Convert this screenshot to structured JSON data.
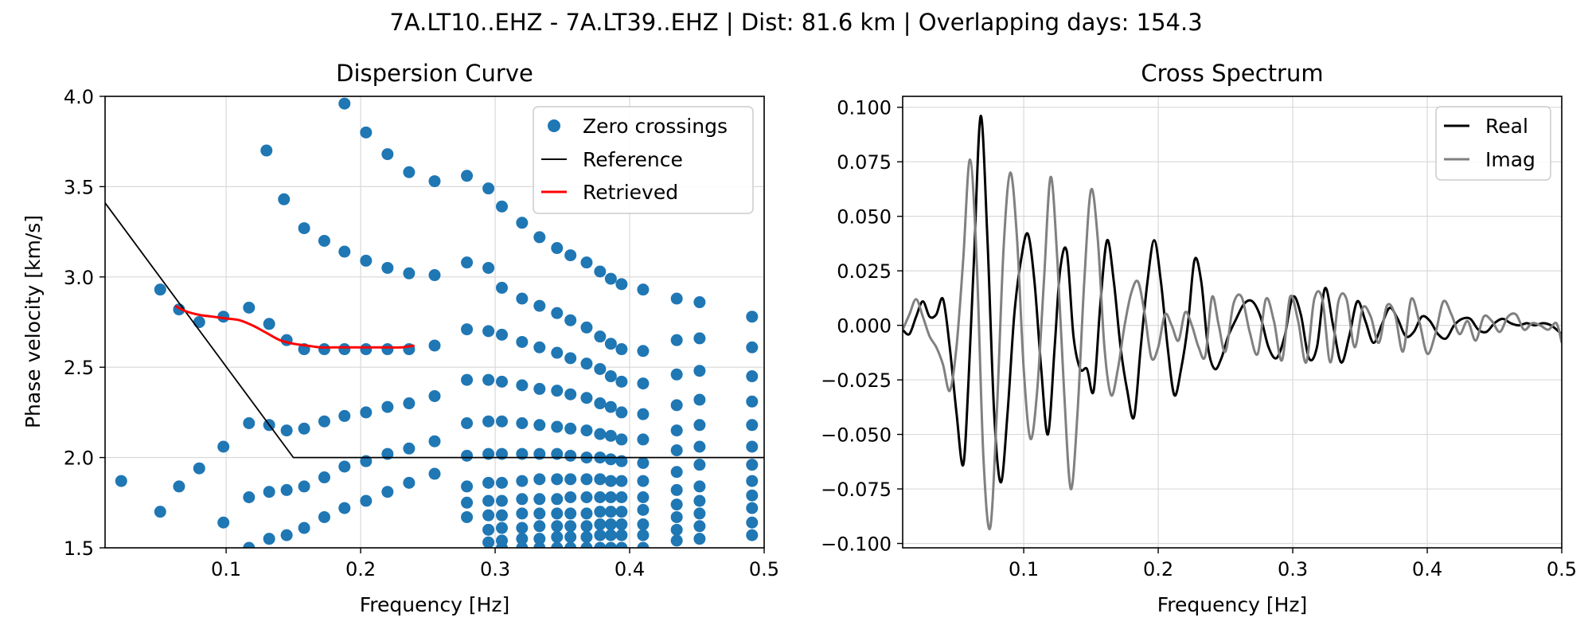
{
  "figure": {
    "suptitle": "7A.LT10..EHZ - 7A.LT39..EHZ | Dist: 81.6 km | Overlapping days: 154.3"
  },
  "colors": {
    "zero_crossings": "#1f77b4",
    "reference": "#000000",
    "retrieved": "#ff0000",
    "real": "#000000",
    "imag": "#808080",
    "grid": "#d9d9d9"
  },
  "chart_data": [
    {
      "type": "scatter",
      "title": "Dispersion Curve",
      "xlabel": "Frequency [Hz]",
      "ylabel": "Phase velocity [km/s]",
      "xlim": [
        0.01,
        0.5
      ],
      "ylim": [
        1.5,
        4.0
      ],
      "xticks": [
        0.1,
        0.2,
        0.3,
        0.4,
        0.5
      ],
      "xtick_labels": [
        "0.1",
        "0.2",
        "0.3",
        "0.4",
        "0.5"
      ],
      "yticks": [
        1.5,
        2.0,
        2.5,
        3.0,
        3.5,
        4.0
      ],
      "ytick_labels": [
        "1.5",
        "2.0",
        "2.5",
        "3.0",
        "3.5",
        "4.0"
      ],
      "grid": true,
      "legend_position": "top-right",
      "legend": [
        "Zero crossings",
        "Reference",
        "Retrieved"
      ],
      "series": [
        {
          "name": "Zero crossings",
          "type": "scatter",
          "x": [
            0.022,
            0.051,
            0.065,
            0.08,
            0.098,
            0.117,
            0.132,
            0.145,
            0.158,
            0.173,
            0.188,
            0.204,
            0.22,
            0.236,
            0.255,
            0.279,
            0.295,
            0.305,
            0.32,
            0.333,
            0.346,
            0.356,
            0.368,
            0.378,
            0.386,
            0.394,
            0.41,
            0.435,
            0.452,
            0.491,
            0.051,
            0.065,
            0.08,
            0.098,
            0.117,
            0.132,
            0.145,
            0.158,
            0.173,
            0.188,
            0.204,
            0.22,
            0.236,
            0.255,
            0.279,
            0.295,
            0.305,
            0.32,
            0.333,
            0.346,
            0.356,
            0.368,
            0.378,
            0.386,
            0.394,
            0.41,
            0.435,
            0.452,
            0.491,
            0.098,
            0.117,
            0.132,
            0.145,
            0.158,
            0.173,
            0.188,
            0.204,
            0.22,
            0.236,
            0.255,
            0.279,
            0.295,
            0.305,
            0.32,
            0.333,
            0.346,
            0.356,
            0.368,
            0.378,
            0.386,
            0.394,
            0.41,
            0.435,
            0.452,
            0.491,
            0.117,
            0.132,
            0.145,
            0.158,
            0.173,
            0.188,
            0.204,
            0.22,
            0.236,
            0.255,
            0.279,
            0.295,
            0.305,
            0.32,
            0.333,
            0.346,
            0.356,
            0.368,
            0.378,
            0.386,
            0.394,
            0.41,
            0.435,
            0.452,
            0.491,
            0.279,
            0.295,
            0.305,
            0.32,
            0.333,
            0.346,
            0.356,
            0.368,
            0.378,
            0.386,
            0.394,
            0.41,
            0.435,
            0.452,
            0.491,
            0.279,
            0.295,
            0.305,
            0.32,
            0.333,
            0.346,
            0.356,
            0.368,
            0.378,
            0.386,
            0.394,
            0.41,
            0.435,
            0.452,
            0.491,
            0.279,
            0.295,
            0.305,
            0.32,
            0.333,
            0.346,
            0.356,
            0.368,
            0.378,
            0.386,
            0.394,
            0.41,
            0.435,
            0.452,
            0.491,
            0.295,
            0.305,
            0.32,
            0.333,
            0.346,
            0.356,
            0.368,
            0.378,
            0.386,
            0.394,
            0.41,
            0.435,
            0.452,
            0.491,
            0.295,
            0.305,
            0.32,
            0.333,
            0.346,
            0.356,
            0.368,
            0.378,
            0.386,
            0.394,
            0.41,
            0.435,
            0.452,
            0.491,
            0.305,
            0.32,
            0.333,
            0.346,
            0.356,
            0.368,
            0.378,
            0.386,
            0.394,
            0.41,
            0.435,
            0.452,
            0.491,
            0.13,
            0.143,
            0.158,
            0.173,
            0.188,
            0.204,
            0.22,
            0.236,
            0.255,
            0.279,
            0.295,
            0.305,
            0.32,
            0.333,
            0.346,
            0.356,
            0.368,
            0.378,
            0.386,
            0.394,
            0.41,
            0.435,
            0.452,
            0.491,
            0.188,
            0.204,
            0.22,
            0.236,
            0.255,
            0.279,
            0.295,
            0.305,
            0.32,
            0.333,
            0.346,
            0.356,
            0.368,
            0.378,
            0.386,
            0.394,
            0.41,
            0.435,
            0.452,
            0.491
          ],
          "y": [
            1.87,
            2.93,
            2.82,
            2.75,
            2.78,
            2.83,
            2.74,
            2.65,
            2.6,
            2.6,
            2.6,
            2.6,
            2.6,
            2.6,
            2.62,
            2.71,
            2.7,
            2.68,
            2.64,
            2.61,
            2.58,
            2.55,
            2.52,
            2.49,
            2.45,
            2.42,
            2.41,
            2.46,
            2.48,
            2.45,
            1.7,
            1.84,
            1.94,
            2.06,
            2.19,
            2.18,
            2.15,
            2.16,
            2.2,
            2.23,
            2.25,
            2.28,
            2.3,
            2.34,
            2.43,
            2.43,
            2.42,
            2.4,
            2.38,
            2.37,
            2.35,
            2.33,
            2.3,
            2.28,
            2.25,
            2.24,
            2.29,
            2.32,
            2.31,
            1.64,
            1.78,
            1.81,
            1.82,
            1.84,
            1.89,
            1.95,
            1.98,
            2.02,
            2.05,
            2.09,
            2.19,
            2.2,
            2.2,
            2.19,
            2.18,
            2.17,
            2.16,
            2.15,
            2.13,
            2.12,
            2.1,
            2.1,
            2.15,
            2.18,
            2.18,
            1.5,
            1.55,
            1.57,
            1.61,
            1.67,
            1.72,
            1.76,
            1.81,
            1.86,
            1.91,
            2.01,
            2.02,
            2.02,
            2.02,
            2.02,
            2.02,
            2.01,
            2.0,
            2.0,
            1.99,
            1.98,
            1.97,
            2.04,
            2.06,
            2.06,
            1.84,
            1.86,
            1.86,
            1.87,
            1.88,
            1.88,
            1.88,
            1.88,
            1.88,
            1.87,
            1.87,
            1.87,
            1.92,
            1.96,
            1.96,
            1.75,
            1.76,
            1.76,
            1.77,
            1.77,
            1.77,
            1.78,
            1.78,
            1.78,
            1.78,
            1.78,
            1.78,
            1.82,
            1.84,
            1.87,
            1.67,
            1.68,
            1.68,
            1.69,
            1.69,
            1.69,
            1.69,
            1.69,
            1.7,
            1.7,
            1.7,
            1.71,
            1.74,
            1.76,
            1.79,
            1.6,
            1.61,
            1.61,
            1.62,
            1.62,
            1.62,
            1.62,
            1.63,
            1.63,
            1.63,
            1.63,
            1.67,
            1.69,
            1.72,
            1.53,
            1.54,
            1.55,
            1.55,
            1.56,
            1.56,
            1.56,
            1.57,
            1.57,
            1.57,
            1.57,
            1.6,
            1.62,
            1.64,
            1.5,
            1.5,
            1.5,
            1.5,
            1.5,
            1.5,
            1.5,
            1.5,
            1.5,
            1.5,
            1.54,
            1.55,
            1.57,
            3.7,
            3.43,
            3.27,
            3.2,
            3.14,
            3.09,
            3.05,
            3.02,
            3.01,
            3.08,
            3.05,
            2.94,
            2.88,
            2.84,
            2.8,
            2.76,
            2.72,
            2.67,
            2.63,
            2.6,
            2.59,
            2.65,
            2.66,
            2.61,
            3.96,
            3.8,
            3.68,
            3.58,
            3.53,
            3.56,
            3.49,
            3.39,
            3.3,
            3.22,
            3.16,
            3.12,
            3.08,
            3.03,
            2.99,
            2.96,
            2.93,
            2.88,
            2.86,
            2.78
          ]
        },
        {
          "name": "Reference",
          "type": "line",
          "x": [
            0.01,
            0.15,
            0.5
          ],
          "y": [
            3.41,
            2.0,
            2.0
          ]
        },
        {
          "name": "Retrieved",
          "type": "line",
          "x": [
            0.062,
            0.07,
            0.08,
            0.09,
            0.1,
            0.11,
            0.12,
            0.13,
            0.14,
            0.15,
            0.16,
            0.17,
            0.18,
            0.19,
            0.2,
            0.21,
            0.22,
            0.23,
            0.24
          ],
          "y": [
            2.84,
            2.81,
            2.79,
            2.78,
            2.77,
            2.76,
            2.73,
            2.69,
            2.65,
            2.63,
            2.62,
            2.61,
            2.61,
            2.61,
            2.61,
            2.61,
            2.61,
            2.61,
            2.62
          ]
        }
      ]
    },
    {
      "type": "line",
      "title": "Cross Spectrum",
      "xlabel": "Frequency [Hz]",
      "ylabel": "",
      "xlim": [
        0.01,
        0.5
      ],
      "ylim": [
        -0.102,
        0.105
      ],
      "xticks": [
        0.1,
        0.2,
        0.3,
        0.4,
        0.5
      ],
      "xtick_labels": [
        "0.1",
        "0.2",
        "0.3",
        "0.4",
        "0.5"
      ],
      "yticks": [
        -0.1,
        -0.075,
        -0.05,
        -0.025,
        0.0,
        0.025,
        0.05,
        0.075,
        0.1
      ],
      "ytick_labels": [
        "−0.100",
        "−0.075",
        "−0.050",
        "−0.025",
        "0.000",
        "0.025",
        "0.050",
        "0.075",
        "0.100"
      ],
      "grid": true,
      "legend_position": "top-right",
      "legend": [
        "Real",
        "Imag"
      ],
      "series": [
        {
          "name": "Real",
          "x": [
            0.01,
            0.015,
            0.02,
            0.025,
            0.03,
            0.035,
            0.04,
            0.045,
            0.05,
            0.055,
            0.059,
            0.063,
            0.068,
            0.073,
            0.078,
            0.083,
            0.088,
            0.093,
            0.098,
            0.103,
            0.108,
            0.113,
            0.118,
            0.123,
            0.127,
            0.132,
            0.137,
            0.142,
            0.147,
            0.152,
            0.157,
            0.162,
            0.167,
            0.172,
            0.177,
            0.182,
            0.187,
            0.192,
            0.197,
            0.202,
            0.207,
            0.212,
            0.217,
            0.222,
            0.227,
            0.232,
            0.237,
            0.242,
            0.247,
            0.252,
            0.258,
            0.264,
            0.27,
            0.276,
            0.282,
            0.288,
            0.294,
            0.3,
            0.306,
            0.312,
            0.318,
            0.324,
            0.33,
            0.336,
            0.342,
            0.348,
            0.354,
            0.36,
            0.366,
            0.372,
            0.378,
            0.384,
            0.39,
            0.396,
            0.402,
            0.408,
            0.414,
            0.42,
            0.426,
            0.432,
            0.438,
            0.444,
            0.45,
            0.456,
            0.462,
            0.468,
            0.474,
            0.48,
            0.486,
            0.492,
            0.5
          ],
          "y": [
            -0.002,
            -0.004,
            0.004,
            0.011,
            0.004,
            0.005,
            0.012,
            -0.01,
            -0.04,
            -0.064,
            -0.025,
            0.03,
            0.096,
            0.04,
            -0.04,
            -0.072,
            -0.04,
            0.005,
            0.03,
            0.042,
            0.02,
            -0.02,
            -0.05,
            -0.01,
            0.025,
            0.034,
            -0.005,
            -0.02,
            -0.02,
            -0.03,
            0.01,
            0.039,
            0.02,
            -0.01,
            -0.03,
            -0.042,
            -0.01,
            0.02,
            0.039,
            0.02,
            -0.01,
            -0.032,
            -0.02,
            0.0,
            0.03,
            0.02,
            -0.01,
            -0.02,
            -0.015,
            -0.005,
            0.003,
            0.01,
            0.011,
            0.004,
            -0.01,
            -0.015,
            -0.005,
            0.013,
            0.005,
            -0.015,
            -0.01,
            0.017,
            0.0,
            -0.017,
            -0.005,
            0.011,
            0.002,
            -0.008,
            0.0,
            0.008,
            0.003,
            -0.005,
            -0.003,
            0.004,
            0.002,
            -0.004,
            -0.006,
            0.0,
            0.003,
            0.003,
            -0.002,
            -0.003,
            0.001,
            0.003,
            0.001,
            0.0,
            0.001,
            0.0,
            0.001,
            0.0,
            -0.004
          ]
        },
        {
          "name": "Imag",
          "x": [
            0.01,
            0.015,
            0.02,
            0.025,
            0.03,
            0.035,
            0.04,
            0.045,
            0.05,
            0.055,
            0.06,
            0.065,
            0.07,
            0.075,
            0.08,
            0.085,
            0.09,
            0.095,
            0.1,
            0.105,
            0.11,
            0.115,
            0.12,
            0.125,
            0.13,
            0.135,
            0.14,
            0.145,
            0.15,
            0.155,
            0.16,
            0.165,
            0.17,
            0.175,
            0.18,
            0.185,
            0.19,
            0.195,
            0.2,
            0.205,
            0.21,
            0.215,
            0.22,
            0.225,
            0.23,
            0.235,
            0.24,
            0.245,
            0.25,
            0.256,
            0.262,
            0.268,
            0.274,
            0.28,
            0.286,
            0.292,
            0.298,
            0.304,
            0.31,
            0.316,
            0.322,
            0.328,
            0.334,
            0.34,
            0.346,
            0.352,
            0.358,
            0.364,
            0.37,
            0.376,
            0.382,
            0.388,
            0.394,
            0.4,
            0.406,
            0.412,
            0.418,
            0.424,
            0.43,
            0.436,
            0.442,
            0.448,
            0.454,
            0.46,
            0.466,
            0.472,
            0.478,
            0.484,
            0.49,
            0.496,
            0.5
          ],
          "y": [
            -0.002,
            0.005,
            0.012,
            0.004,
            -0.005,
            -0.01,
            -0.018,
            -0.03,
            -0.01,
            0.03,
            0.076,
            0.03,
            -0.06,
            -0.093,
            -0.04,
            0.035,
            0.07,
            0.04,
            -0.02,
            -0.052,
            -0.03,
            0.02,
            0.068,
            0.03,
            -0.03,
            -0.075,
            -0.04,
            0.02,
            0.062,
            0.04,
            -0.01,
            -0.032,
            -0.02,
            0.0,
            0.015,
            0.02,
            0.005,
            -0.015,
            -0.01,
            0.005,
            0.0,
            -0.007,
            0.006,
            0.0,
            -0.01,
            -0.014,
            0.013,
            0.0,
            -0.012,
            0.01,
            0.013,
            -0.003,
            -0.013,
            0.012,
            0.002,
            -0.016,
            0.013,
            0.002,
            -0.017,
            0.012,
            0.012,
            -0.017,
            0.011,
            0.012,
            -0.01,
            0.008,
            0.004,
            -0.008,
            0.009,
            0.005,
            -0.012,
            0.012,
            0.002,
            -0.013,
            -0.004,
            0.011,
            0.005,
            -0.004,
            0.002,
            -0.007,
            0.004,
            0.002,
            -0.003,
            0.004,
            0.005,
            -0.002,
            0.001,
            0.0,
            -0.002,
            0.001,
            -0.008
          ]
        }
      ]
    }
  ]
}
